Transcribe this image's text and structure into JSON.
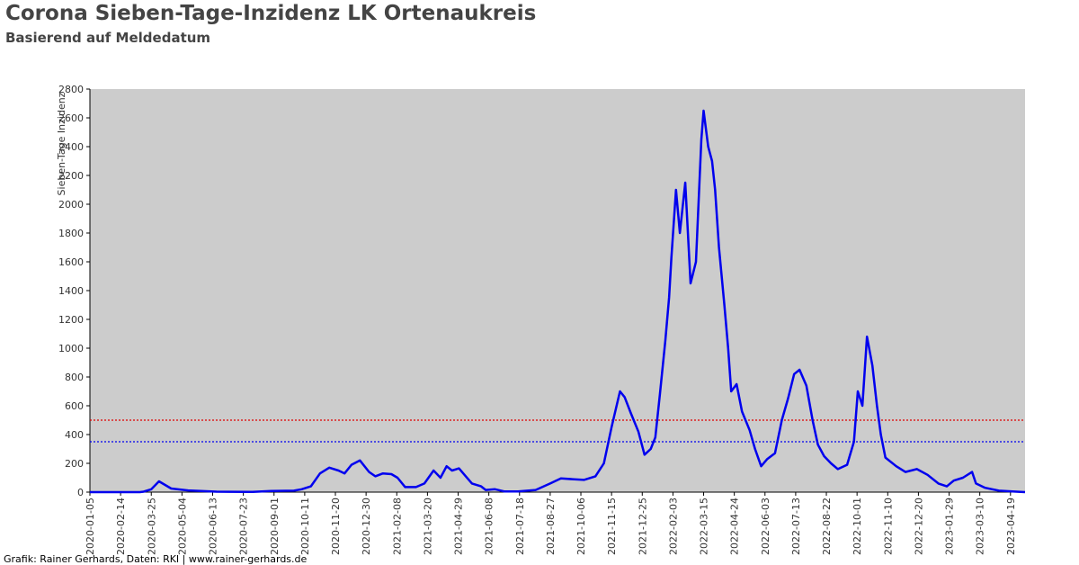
{
  "chart_data": {
    "type": "line",
    "title": "Corona Sieben-Tage-Inzidenz LK Ortenaukreis",
    "subtitle": "Basierend auf Meldedatum",
    "y_label": "Sieben-Tage Inzidenz",
    "footer": "Grafik: Rainer Gerhards, Daten: RKI | www.rainer-gerhards.de",
    "xlim": [
      "2020-01-05",
      "2023-05-08"
    ],
    "ylim": [
      0,
      2800
    ],
    "yticks": [
      0,
      200,
      400,
      600,
      800,
      1000,
      1200,
      1400,
      1600,
      1800,
      2000,
      2200,
      2400,
      2600,
      2800
    ],
    "xticks": [
      "2020-01-05",
      "2020-02-14",
      "2020-03-25",
      "2020-05-04",
      "2020-06-13",
      "2020-07-23",
      "2020-09-01",
      "2020-10-11",
      "2020-11-20",
      "2020-12-30",
      "2021-02-08",
      "2021-03-20",
      "2021-04-29",
      "2021-06-08",
      "2021-07-18",
      "2021-08-27",
      "2021-10-06",
      "2021-11-15",
      "2021-12-25",
      "2022-02-03",
      "2022-03-15",
      "2022-04-24",
      "2022-06-03",
      "2022-07-13",
      "2022-08-22",
      "2022-10-01",
      "2022-11-10",
      "2022-12-20",
      "2023-01-29",
      "2023-03-10",
      "2023-04-19"
    ],
    "grid": false,
    "background": "#cccccc",
    "reference_lines": [
      {
        "value": 500,
        "color": "#e00000"
      },
      {
        "value": 350,
        "color": "#0000ee"
      }
    ],
    "x": [
      "2020-01-05",
      "2020-03-10",
      "2020-03-15",
      "2020-03-25",
      "2020-04-04",
      "2020-04-20",
      "2020-05-12",
      "2020-06-18",
      "2020-08-04",
      "2020-08-28",
      "2020-09-27",
      "2020-10-07",
      "2020-10-19",
      "2020-10-31",
      "2020-11-12",
      "2020-11-24",
      "2020-12-02",
      "2020-12-11",
      "2020-12-22",
      "2021-01-03",
      "2021-01-11",
      "2021-01-21",
      "2021-02-01",
      "2021-02-09",
      "2021-02-19",
      "2021-03-05",
      "2021-03-16",
      "2021-03-28",
      "2021-04-06",
      "2021-04-14",
      "2021-04-21",
      "2021-04-30",
      "2021-05-09",
      "2021-05-17",
      "2021-05-29",
      "2021-06-04",
      "2021-06-16",
      "2021-06-28",
      "2021-07-16",
      "2021-08-08",
      "2021-08-27",
      "2021-09-10",
      "2021-09-25",
      "2021-10-10",
      "2021-10-25",
      "2021-11-05",
      "2021-11-15",
      "2021-11-26",
      "2021-12-02",
      "2021-12-10",
      "2021-12-20",
      "2021-12-28",
      "2022-01-05",
      "2022-01-11",
      "2022-01-17",
      "2022-01-24",
      "2022-01-29",
      "2022-02-01",
      "2022-02-07",
      "2022-02-12",
      "2022-02-19",
      "2022-02-26",
      "2022-03-05",
      "2022-03-12",
      "2022-03-15",
      "2022-03-21",
      "2022-03-26",
      "2022-03-30",
      "2022-04-04",
      "2022-04-11",
      "2022-04-16",
      "2022-04-20",
      "2022-04-27",
      "2022-05-04",
      "2022-05-14",
      "2022-05-21",
      "2022-05-29",
      "2022-06-06",
      "2022-06-16",
      "2022-06-25",
      "2022-07-03",
      "2022-07-11",
      "2022-07-18",
      "2022-07-27",
      "2022-08-04",
      "2022-08-11",
      "2022-08-19",
      "2022-08-28",
      "2022-09-06",
      "2022-09-18",
      "2022-09-27",
      "2022-10-02",
      "2022-10-08",
      "2022-10-14",
      "2022-10-21",
      "2022-10-27",
      "2022-11-01",
      "2022-11-07",
      "2022-11-21",
      "2022-12-03",
      "2022-12-18",
      "2023-01-01",
      "2023-01-15",
      "2023-01-26",
      "2023-02-04",
      "2023-02-16",
      "2023-02-28",
      "2023-03-05",
      "2023-03-17",
      "2023-04-04",
      "2023-04-27",
      "2023-05-08"
    ],
    "series": [
      {
        "name": "Sieben-Tage Inzidenz",
        "color": "#0000ee",
        "values": [
          0,
          0,
          3,
          20,
          75,
          25,
          12,
          3,
          2,
          8,
          10,
          20,
          40,
          130,
          170,
          150,
          130,
          190,
          220,
          140,
          110,
          130,
          125,
          100,
          35,
          35,
          60,
          150,
          100,
          180,
          150,
          165,
          110,
          60,
          40,
          15,
          20,
          5,
          5,
          15,
          60,
          95,
          90,
          85,
          110,
          200,
          450,
          700,
          660,
          550,
          420,
          260,
          300,
          380,
          680,
          1050,
          1350,
          1630,
          2100,
          1800,
          2150,
          1450,
          1600,
          2450,
          2650,
          2400,
          2300,
          2100,
          1700,
          1300,
          1000,
          700,
          750,
          560,
          430,
          300,
          180,
          230,
          270,
          500,
          650,
          820,
          850,
          740,
          500,
          330,
          250,
          200,
          160,
          190,
          350,
          700,
          600,
          1080,
          880,
          600,
          400,
          240,
          180,
          140,
          160,
          120,
          60,
          40,
          80,
          100,
          140,
          60,
          30,
          10,
          3,
          0
        ]
      }
    ]
  }
}
